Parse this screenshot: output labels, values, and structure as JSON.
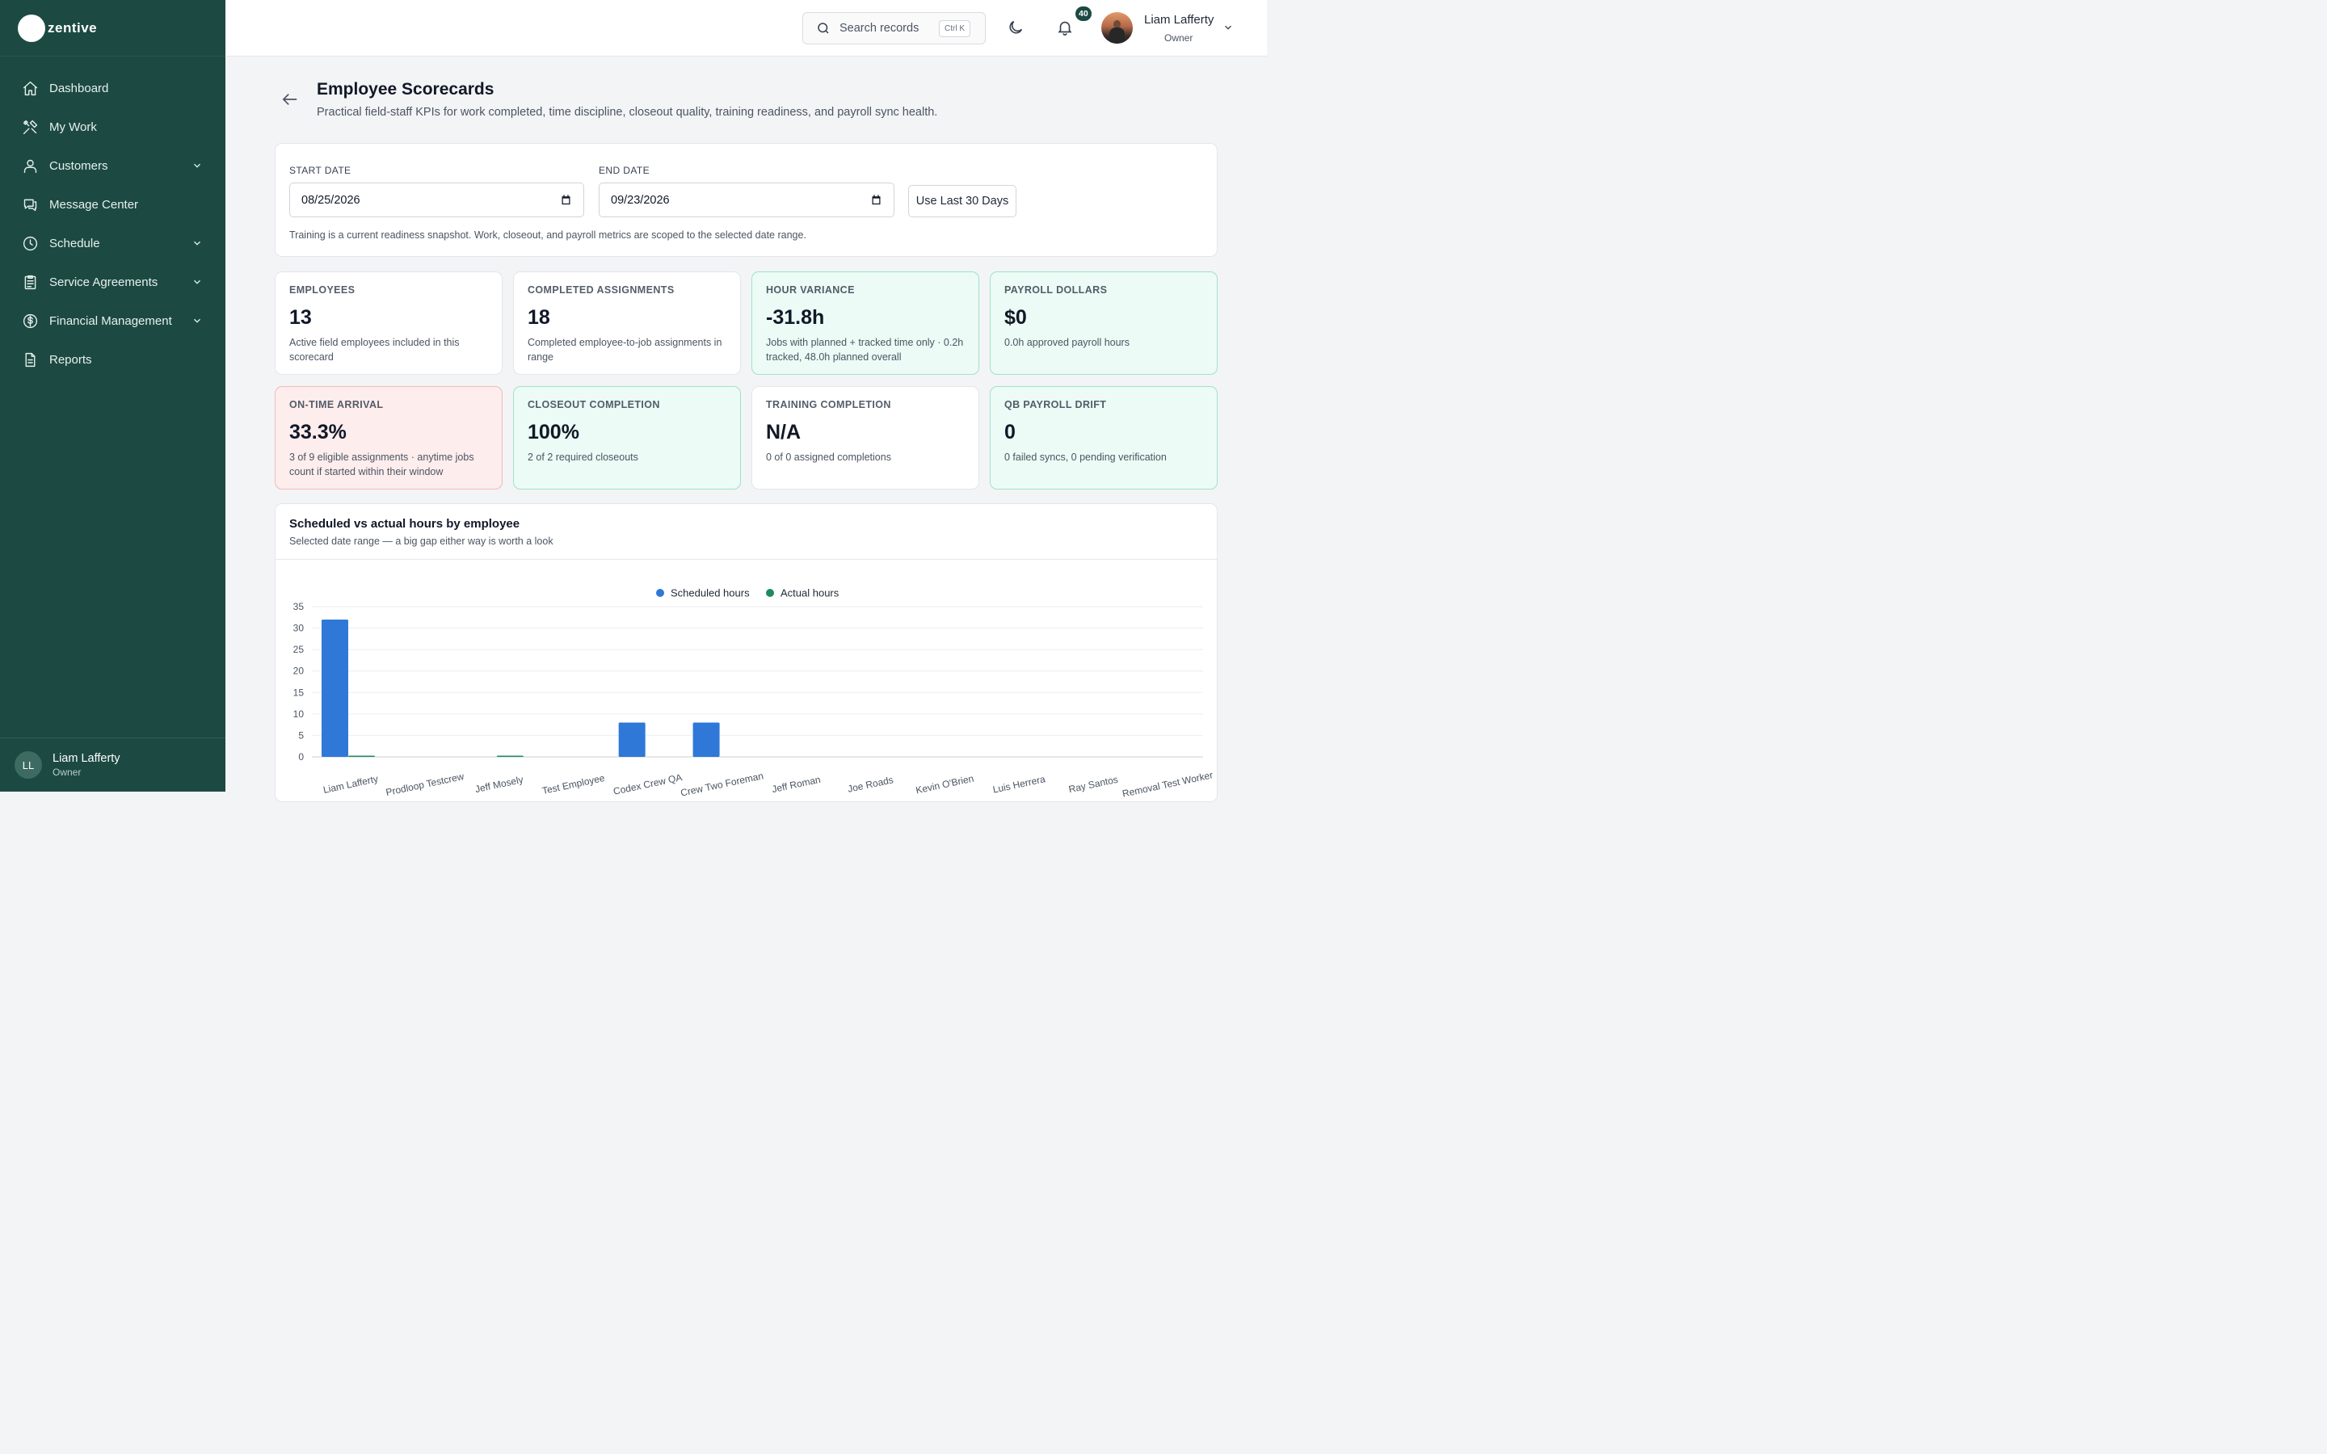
{
  "brand": {
    "name": "zentive"
  },
  "sidebar": {
    "items": [
      {
        "label": "Dashboard",
        "icon": "home-icon",
        "has_chevron": false
      },
      {
        "label": "My Work",
        "icon": "tools-icon",
        "has_chevron": false
      },
      {
        "label": "Customers",
        "icon": "users-icon",
        "has_chevron": true
      },
      {
        "label": "Message Center",
        "icon": "chat-icon",
        "has_chevron": false
      },
      {
        "label": "Schedule",
        "icon": "clock-icon",
        "has_chevron": true
      },
      {
        "label": "Service Agreements",
        "icon": "clipboard-icon",
        "has_chevron": true
      },
      {
        "label": "Financial Management",
        "icon": "dollar-icon",
        "has_chevron": true
      },
      {
        "label": "Reports",
        "icon": "document-icon",
        "has_chevron": false
      }
    ],
    "footer": {
      "initials": "LL",
      "name": "Liam Lafferty",
      "role": "Owner"
    }
  },
  "header": {
    "search_placeholder": "Search records",
    "search_shortcut": "Ctrl K",
    "notification_count": "40",
    "user_name": "Liam Lafferty",
    "user_role": "Owner"
  },
  "page": {
    "title": "Employee Scorecards",
    "subtitle": "Practical field-staff KPIs for work completed, time discipline, closeout quality, training readiness, and payroll sync health."
  },
  "filters": {
    "start_label": "START DATE",
    "start_value": "08/25/2026",
    "end_label": "END DATE",
    "end_value": "09/23/2026",
    "last30_label": "Use Last 30 Days",
    "note": "Training is a current readiness snapshot. Work, closeout, and payroll metrics are scoped to the selected date range."
  },
  "kpis": [
    {
      "label": "EMPLOYEES",
      "value": "13",
      "desc": "Active field employees included in this scorecard",
      "tone": "neutral"
    },
    {
      "label": "COMPLETED ASSIGNMENTS",
      "value": "18",
      "desc": "Completed employee-to-job assignments in range",
      "tone": "neutral"
    },
    {
      "label": "HOUR VARIANCE",
      "value": "-31.8h",
      "desc": "Jobs with planned + tracked time only · 0.2h tracked, 48.0h planned overall",
      "tone": "green"
    },
    {
      "label": "PAYROLL DOLLARS",
      "value": "$0",
      "desc": "0.0h approved payroll hours",
      "tone": "green"
    },
    {
      "label": "ON-TIME ARRIVAL",
      "value": "33.3%",
      "desc": "3 of 9 eligible assignments · anytime jobs count if started within their window",
      "tone": "red"
    },
    {
      "label": "CLOSEOUT COMPLETION",
      "value": "100%",
      "desc": "2 of 2 required closeouts",
      "tone": "green"
    },
    {
      "label": "TRAINING COMPLETION",
      "value": "N/A",
      "desc": "0 of 0 assigned completions",
      "tone": "neutral"
    },
    {
      "label": "QB PAYROLL DRIFT",
      "value": "0",
      "desc": "0 failed syncs, 0 pending verification",
      "tone": "green"
    }
  ],
  "chart": {
    "title": "Scheduled vs actual hours by employee",
    "subtitle": "Selected date range — a big gap either way is worth a look"
  },
  "chart_data": {
    "type": "bar",
    "categories": [
      "Liam Lafferty",
      "Prodloop Testcrew",
      "Jeff Mosely",
      "Test Employee",
      "Codex Crew QA",
      "Crew Two Foreman",
      "Jeff Roman",
      "Joe Roads",
      "Kevin O'Brien",
      "Luis Herrera",
      "Ray Santos",
      "Removal Test Worker"
    ],
    "series": [
      {
        "name": "Scheduled hours",
        "color": "#2f78d8",
        "values": [
          32,
          0,
          0,
          0,
          8,
          8,
          0,
          0,
          0,
          0,
          0,
          0
        ]
      },
      {
        "name": "Actual hours",
        "color": "#1f8a5f",
        "values": [
          0.2,
          0,
          0.05,
          0,
          0,
          0,
          0,
          0,
          0,
          0,
          0,
          0
        ]
      }
    ],
    "yticks": [
      0,
      5,
      10,
      15,
      20,
      25,
      30,
      35
    ],
    "ylim": [
      0,
      35
    ],
    "legend": "top-center",
    "grid": true
  }
}
